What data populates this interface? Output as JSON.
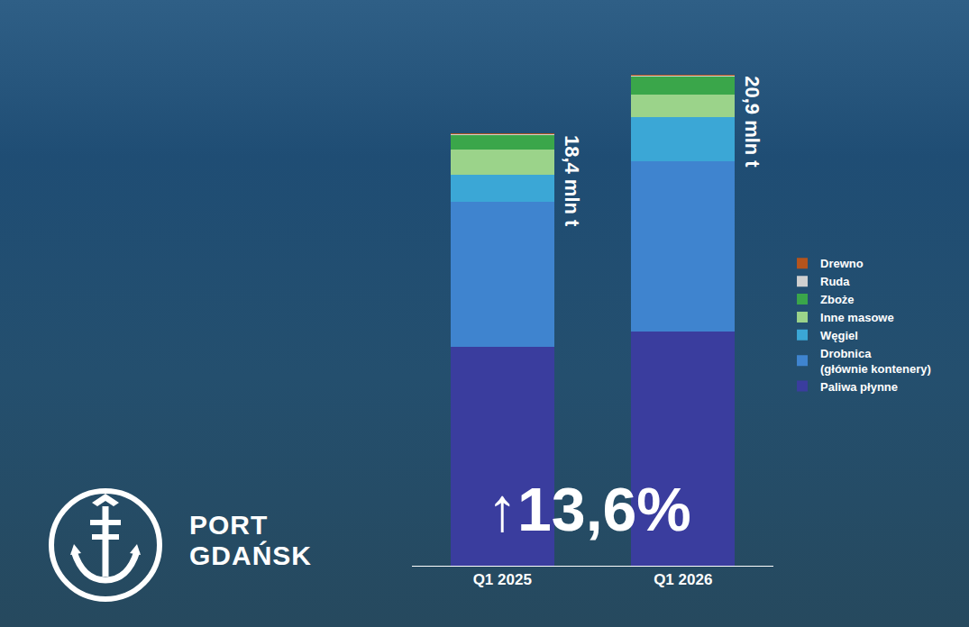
{
  "chart_data": {
    "type": "bar",
    "stacked": true,
    "categories": [
      "Q1 2025",
      "Q1 2026"
    ],
    "series": [
      {
        "name": "Paliwa płynne",
        "color": "#3a3d9e",
        "values": [
          9.3,
          9.95
        ]
      },
      {
        "name": "Drobnica (głównie kontenery)",
        "color": "#3f84cf",
        "values": [
          6.2,
          7.25
        ]
      },
      {
        "name": "Węgiel",
        "color": "#3ba7d6",
        "values": [
          1.15,
          1.9
        ]
      },
      {
        "name": "Inne masowe",
        "color": "#9bd38a",
        "values": [
          1.05,
          0.95
        ]
      },
      {
        "name": "Zboże",
        "color": "#3aa64a",
        "values": [
          0.62,
          0.77
        ]
      },
      {
        "name": "Ruda",
        "color": "#d0d0d0",
        "values": [
          0.04,
          0.04
        ]
      },
      {
        "name": "Drewno",
        "color": "#b5541c",
        "values": [
          0.04,
          0.04
        ]
      }
    ],
    "ylim": [
      0,
      21
    ],
    "tick_labels": "x",
    "legend": "right",
    "annotations": [
      "18,4 mln t",
      "20,9 mln t",
      "↑13,6%"
    ]
  },
  "logo": {
    "text": [
      "PORT",
      "GDAŃSK"
    ]
  }
}
